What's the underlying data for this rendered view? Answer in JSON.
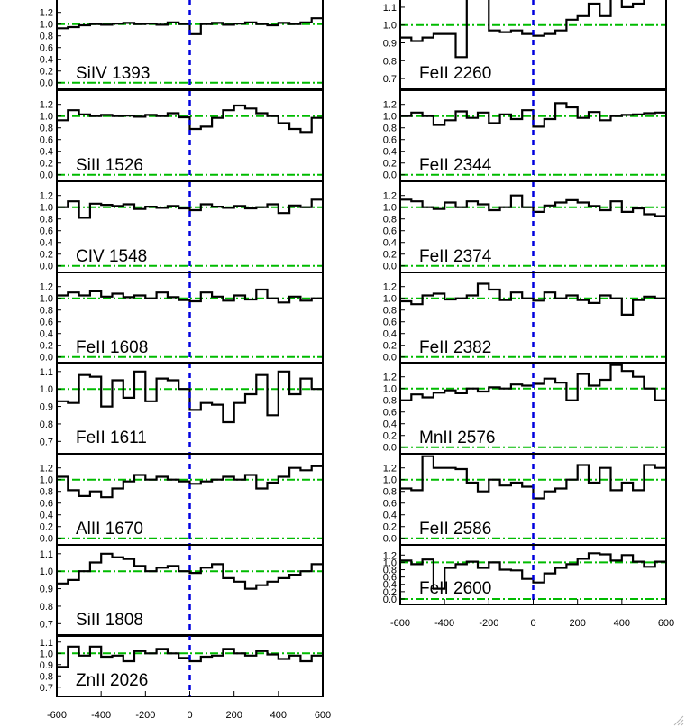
{
  "chart_data": {
    "type": "line",
    "xlabel": "",
    "ylabel": "",
    "xlim": [
      -600,
      600
    ],
    "xticks": [
      -600,
      -400,
      -200,
      0,
      200,
      400,
      600
    ],
    "velocity_bins": [
      -600,
      -550,
      -500,
      -450,
      -400,
      -350,
      -300,
      -250,
      -200,
      -150,
      -100,
      -50,
      0,
      50,
      100,
      150,
      200,
      250,
      300,
      350,
      400,
      450,
      500,
      550,
      600
    ],
    "reference_lines": [
      0.0,
      1.0
    ],
    "zero_velocity": 0,
    "colors": {
      "spectrum": "#000000",
      "reference": "#00bb00",
      "zero_velocity": "#0000dd"
    },
    "grid": false,
    "panels": [
      {
        "label": "SiIV 1393",
        "column": "left",
        "ylim": [
          -0.05,
          1.38
        ],
        "yticks": [
          "0.0",
          "0.2",
          "0.4",
          "0.6",
          "0.8",
          "1.0",
          "1.2"
        ],
        "values": [
          0.93,
          0.95,
          0.98,
          1.0,
          0.99,
          1.01,
          1.02,
          1.0,
          1.01,
          0.99,
          1.03,
          1.0,
          0.83,
          1.0,
          1.02,
          0.99,
          1.01,
          1.03,
          1.0,
          0.98,
          1.02,
          1.0,
          1.03,
          1.1
        ]
      },
      {
        "label": "SiII 1526",
        "column": "left",
        "ylim": [
          -0.05,
          1.38
        ],
        "yticks": [
          "0.0",
          "0.2",
          "0.4",
          "0.6",
          "0.8",
          "1.0",
          "1.2"
        ],
        "values": [
          0.93,
          1.1,
          1.03,
          1.0,
          1.02,
          1.0,
          1.01,
          0.99,
          1.02,
          1.0,
          1.05,
          0.98,
          0.78,
          0.82,
          0.97,
          1.1,
          1.18,
          1.13,
          1.05,
          1.0,
          0.88,
          0.78,
          0.73,
          0.97
        ]
      },
      {
        "label": "CIV 1548",
        "column": "left",
        "ylim": [
          -0.05,
          1.38
        ],
        "yticks": [
          "0.0",
          "0.2",
          "0.4",
          "0.6",
          "0.8",
          "1.0",
          "1.2"
        ],
        "values": [
          1.0,
          1.1,
          0.82,
          1.06,
          1.04,
          1.02,
          1.05,
          0.97,
          1.01,
          0.99,
          1.02,
          0.98,
          0.95,
          1.05,
          1.01,
          0.99,
          1.02,
          0.98,
          1.0,
          1.05,
          0.9,
          1.03,
          1.0,
          1.13
        ]
      },
      {
        "label": "FeII 1608",
        "column": "left",
        "ylim": [
          -0.05,
          1.38
        ],
        "yticks": [
          "0.0",
          "0.2",
          "0.4",
          "0.6",
          "0.8",
          "1.0",
          "1.2"
        ],
        "values": [
          1.05,
          1.1,
          1.05,
          1.12,
          1.03,
          1.08,
          1.02,
          1.05,
          1.0,
          1.1,
          1.02,
          0.97,
          0.95,
          1.1,
          1.03,
          0.96,
          1.05,
          0.98,
          1.15,
          1.0,
          0.93,
          1.03,
          0.96,
          1.0
        ]
      },
      {
        "label": "FeII 1611",
        "column": "left",
        "ylim": [
          0.65,
          1.13
        ],
        "yticks": [
          "0.7",
          "0.8",
          "0.9",
          "1.0",
          "1.1"
        ],
        "values": [
          0.93,
          0.92,
          1.08,
          1.07,
          0.9,
          1.05,
          0.95,
          1.1,
          0.93,
          1.06,
          1.05,
          1.0,
          0.88,
          0.92,
          0.91,
          0.81,
          0.92,
          0.97,
          1.08,
          0.85,
          1.1,
          0.97,
          1.06,
          1.0
        ]
      },
      {
        "label": "AlII 1670",
        "column": "left",
        "ylim": [
          -0.05,
          1.38
        ],
        "yticks": [
          "0.0",
          "0.2",
          "0.4",
          "0.6",
          "0.8",
          "1.0",
          "1.2"
        ],
        "values": [
          1.05,
          0.82,
          0.72,
          0.8,
          0.7,
          0.85,
          0.97,
          1.08,
          1.0,
          1.05,
          1.0,
          0.97,
          0.93,
          0.97,
          1.0,
          1.05,
          1.0,
          1.08,
          0.85,
          0.95,
          1.05,
          1.2,
          1.16,
          1.23
        ]
      },
      {
        "label": "SiII 1808",
        "column": "left",
        "ylim": [
          0.65,
          1.13
        ],
        "yticks": [
          "0.7",
          "0.8",
          "0.9",
          "1.0",
          "1.1"
        ],
        "values": [
          0.93,
          0.95,
          1.0,
          1.05,
          1.1,
          1.08,
          1.07,
          1.03,
          1.0,
          1.02,
          1.03,
          1.0,
          0.99,
          1.02,
          1.04,
          0.96,
          0.94,
          0.9,
          0.92,
          0.94,
          0.96,
          0.98,
          1.0,
          1.04
        ]
      },
      {
        "label": "ZnII 2026",
        "column": "left",
        "ylim": [
          0.65,
          1.13
        ],
        "yticks": [
          "0.7",
          "0.8",
          "0.9",
          "1.0",
          "1.1"
        ],
        "values": [
          0.88,
          1.06,
          0.98,
          1.06,
          0.97,
          0.98,
          0.93,
          1.02,
          1.0,
          1.04,
          1.0,
          0.96,
          0.93,
          0.97,
          0.98,
          1.04,
          1.0,
          0.98,
          1.02,
          0.99,
          0.95,
          0.98,
          0.93,
          0.98
        ]
      },
      {
        "label": "FeII 2260",
        "column": "right",
        "ylim": [
          0.66,
          1.13
        ],
        "yticks": [
          "0.7",
          "0.8",
          "0.9",
          "1.0",
          "1.1"
        ],
        "values": [
          0.93,
          0.91,
          0.93,
          0.95,
          0.95,
          0.82,
          1.16,
          1.16,
          0.97,
          0.96,
          0.97,
          0.95,
          0.94,
          0.95,
          0.97,
          1.03,
          1.05,
          1.12,
          1.05,
          1.15,
          1.1,
          1.12,
          1.15,
          1.15
        ]
      },
      {
        "label": "FeII 2344",
        "column": "right",
        "ylim": [
          -0.05,
          1.38
        ],
        "yticks": [
          "0.0",
          "0.2",
          "0.4",
          "0.6",
          "0.8",
          "1.0",
          "1.2"
        ],
        "values": [
          1.0,
          1.06,
          1.0,
          0.85,
          0.93,
          1.08,
          0.97,
          1.06,
          0.88,
          1.03,
          0.95,
          1.1,
          0.82,
          0.95,
          1.22,
          1.15,
          0.97,
          1.07,
          0.93,
          1.0,
          1.02,
          1.03,
          1.05,
          1.06
        ]
      },
      {
        "label": "FeII 2374",
        "column": "right",
        "ylim": [
          -0.05,
          1.38
        ],
        "yticks": [
          "0.0",
          "0.2",
          "0.4",
          "0.6",
          "0.8",
          "1.0",
          "1.2"
        ],
        "values": [
          1.13,
          1.1,
          1.0,
          0.97,
          1.08,
          1.0,
          1.1,
          1.05,
          0.95,
          1.0,
          1.2,
          1.0,
          0.92,
          1.03,
          1.08,
          1.12,
          1.08,
          1.02,
          0.95,
          1.1,
          0.92,
          0.98,
          0.88,
          0.85
        ]
      },
      {
        "label": "FeII 2382",
        "column": "right",
        "ylim": [
          -0.05,
          1.38
        ],
        "yticks": [
          "0.0",
          "0.2",
          "0.4",
          "0.6",
          "0.8",
          "1.0",
          "1.2"
        ],
        "values": [
          0.95,
          0.9,
          1.05,
          1.08,
          0.98,
          1.0,
          1.05,
          1.25,
          1.15,
          0.97,
          1.1,
          1.0,
          0.96,
          1.1,
          1.0,
          1.05,
          0.97,
          0.92,
          1.05,
          1.0,
          0.72,
          0.97,
          1.03,
          1.0
        ]
      },
      {
        "label": "MnII 2576",
        "column": "right",
        "ylim": [
          -0.05,
          1.38
        ],
        "yticks": [
          "0.0",
          "0.2",
          "0.4",
          "0.6",
          "0.8",
          "1.0",
          "1.2"
        ],
        "values": [
          0.8,
          0.9,
          0.85,
          0.93,
          0.97,
          0.92,
          1.0,
          0.95,
          1.02,
          1.0,
          1.07,
          1.05,
          1.08,
          1.17,
          1.1,
          0.8,
          1.25,
          1.05,
          1.15,
          1.4,
          1.3,
          1.2,
          1.0,
          0.8
        ]
      },
      {
        "label": "FeII 2586",
        "column": "right",
        "ylim": [
          -0.05,
          1.38
        ],
        "yticks": [
          "0.0",
          "0.2",
          "0.4",
          "0.6",
          "0.8",
          "1.0",
          "1.2"
        ],
        "values": [
          0.85,
          0.82,
          1.4,
          1.2,
          1.2,
          1.18,
          0.95,
          0.8,
          1.0,
          0.9,
          0.95,
          0.88,
          0.68,
          0.8,
          0.85,
          1.0,
          1.25,
          0.95,
          1.2,
          0.82,
          0.95,
          0.82,
          1.25,
          1.2
        ]
      },
      {
        "label": "FeII 2600",
        "column": "right",
        "ylim": [
          -0.05,
          1.38
        ],
        "yticks": [
          "0.0",
          "0.2",
          "0.4",
          "0.6",
          "0.8",
          "1.0",
          "1.2"
        ],
        "values": [
          1.05,
          0.95,
          1.08,
          0.28,
          0.85,
          0.95,
          1.02,
          0.85,
          1.0,
          0.8,
          0.78,
          0.55,
          0.45,
          0.7,
          0.85,
          0.95,
          1.1,
          1.25,
          1.22,
          1.05,
          1.2,
          1.02,
          0.88,
          1.02
        ]
      }
    ]
  }
}
